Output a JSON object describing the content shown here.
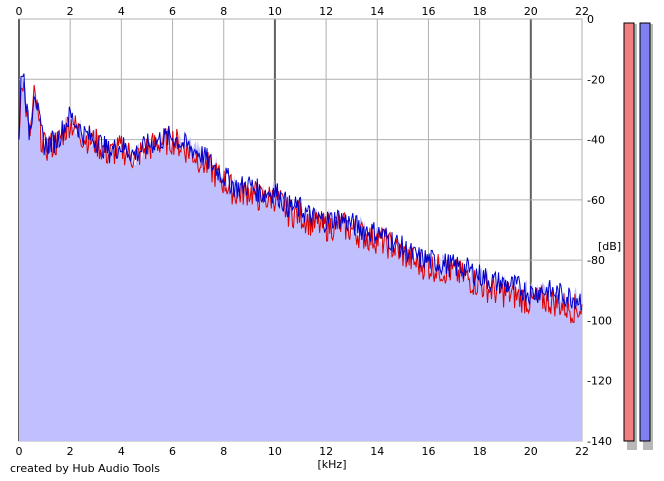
{
  "app": {
    "credit": "created by Hub Audio Tools"
  },
  "chart_data": {
    "type": "area",
    "xlabel": "[kHz]",
    "ylabel": "[dB]",
    "xlim": [
      0,
      22
    ],
    "ylim": [
      -140,
      0
    ],
    "x_ticks": [
      0,
      2,
      4,
      6,
      8,
      10,
      12,
      14,
      16,
      18,
      20,
      22
    ],
    "y_ticks": [
      0,
      -20,
      -40,
      -60,
      -80,
      -100,
      -120,
      -140
    ],
    "grid": true,
    "series": [
      {
        "color": "#0000cc",
        "fill": "#c0c0ff",
        "x": [
          0,
          0.1,
          0.2,
          0.3,
          0.4,
          0.5,
          0.6,
          0.7,
          0.8,
          1,
          1.5,
          2,
          2.5,
          3,
          3.5,
          4,
          4.5,
          5,
          5.5,
          6,
          6.5,
          7,
          7.5,
          8,
          8.5,
          9,
          9.5,
          10,
          10.5,
          11,
          11.5,
          12,
          12.5,
          13,
          13.5,
          14,
          14.5,
          15,
          15.5,
          16,
          16.5,
          17,
          17.5,
          18,
          18.5,
          19,
          19.5,
          20,
          20.5,
          21,
          21.5,
          22
        ],
        "values": [
          -40,
          -15,
          -20,
          -30,
          -38,
          -32,
          -22,
          -28,
          -35,
          -42,
          -40,
          -32,
          -38,
          -40,
          -44,
          -42,
          -45,
          -42,
          -40,
          -39,
          -42,
          -44,
          -48,
          -52,
          -56,
          -55,
          -58,
          -57,
          -62,
          -63,
          -66,
          -67,
          -66,
          -68,
          -70,
          -71,
          -73,
          -76,
          -79,
          -80,
          -81,
          -82,
          -83,
          -85,
          -87,
          -88,
          -89,
          -91,
          -90,
          -91,
          -92,
          -93
        ]
      },
      {
        "color": "#dd0000",
        "x": [
          0,
          0.1,
          0.2,
          0.3,
          0.4,
          0.5,
          0.6,
          0.7,
          0.8,
          1,
          1.5,
          2,
          2.5,
          3,
          3.5,
          4,
          4.5,
          5,
          5.5,
          6,
          6.5,
          7,
          7.5,
          8,
          8.5,
          9,
          9.5,
          10,
          10.5,
          11,
          11.5,
          12,
          12.5,
          13,
          13.5,
          14,
          14.5,
          15,
          15.5,
          16,
          16.5,
          17,
          17.5,
          18,
          18.5,
          19,
          19.5,
          20,
          20.5,
          21,
          21.5,
          22
        ],
        "values": [
          -40,
          -18,
          -22,
          -32,
          -39,
          -34,
          -25,
          -30,
          -37,
          -43,
          -41,
          -34,
          -39,
          -41,
          -45,
          -43,
          -46,
          -43,
          -41,
          -40,
          -43,
          -46,
          -50,
          -54,
          -58,
          -57,
          -60,
          -59,
          -64,
          -65,
          -68,
          -69,
          -68,
          -70,
          -72,
          -73,
          -75,
          -78,
          -81,
          -82,
          -83,
          -84,
          -86,
          -88,
          -90,
          -91,
          -92,
          -94,
          -93,
          -94,
          -96,
          -96
        ]
      }
    ],
    "level_meters": [
      {
        "color": "#f08080",
        "level_db": -140
      },
      {
        "color": "#8080f0",
        "level_db": -140
      }
    ]
  }
}
